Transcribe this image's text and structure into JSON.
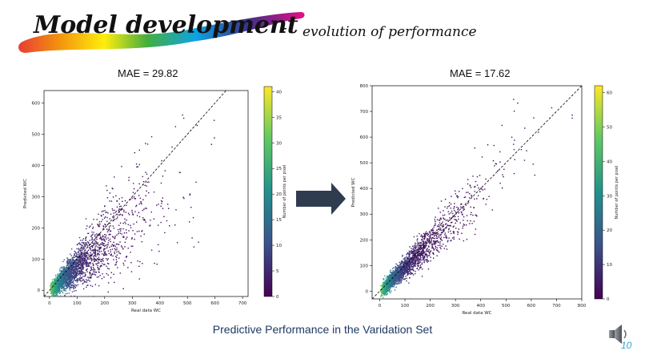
{
  "slide": {
    "title_main": "Model development",
    "title_dash": "-",
    "title_sub": "evolution of performance",
    "caption": "Predictive Performance in the Varidation Set",
    "page_number": "10",
    "arrow_color": "#2f3c50",
    "caption_color": "#1f3864"
  },
  "chart_data": [
    {
      "type": "scatter",
      "title": "MAE = 29.82",
      "xlabel": "Real data WC",
      "ylabel": "Predicted WC",
      "xlim": [
        -20,
        720
      ],
      "ylim": [
        -20,
        640
      ],
      "xticks": [
        0,
        100,
        200,
        300,
        400,
        500,
        600,
        700
      ],
      "yticks": [
        0,
        100,
        200,
        300,
        400,
        500,
        600
      ],
      "reference_line": "y = x",
      "point_density_model": {
        "slope": 0.78,
        "spread": 0.38,
        "n_points": 2600
      },
      "colorbar": {
        "label": "Number of points per pixel",
        "min": 0,
        "max": 41,
        "ticks": [
          0,
          5,
          10,
          15,
          20,
          25,
          30,
          35,
          40
        ],
        "colormap": "viridis"
      }
    },
    {
      "type": "scatter",
      "title": "MAE = 17.62",
      "xlabel": "Real data WC",
      "ylabel": "Predicted WC",
      "xlim": [
        -30,
        800
      ],
      "ylim": [
        -30,
        800
      ],
      "xticks": [
        0,
        100,
        200,
        300,
        400,
        500,
        600,
        700,
        800
      ],
      "yticks": [
        0,
        100,
        200,
        300,
        400,
        500,
        600,
        700,
        800
      ],
      "reference_line": "y = x",
      "point_density_model": {
        "slope": 0.97,
        "spread": 0.18,
        "n_points": 2600
      },
      "colorbar": {
        "label": "Number of points per pixel",
        "min": 0,
        "max": 62,
        "ticks": [
          0,
          10,
          20,
          30,
          40,
          50,
          60
        ],
        "colormap": "viridis"
      }
    }
  ]
}
